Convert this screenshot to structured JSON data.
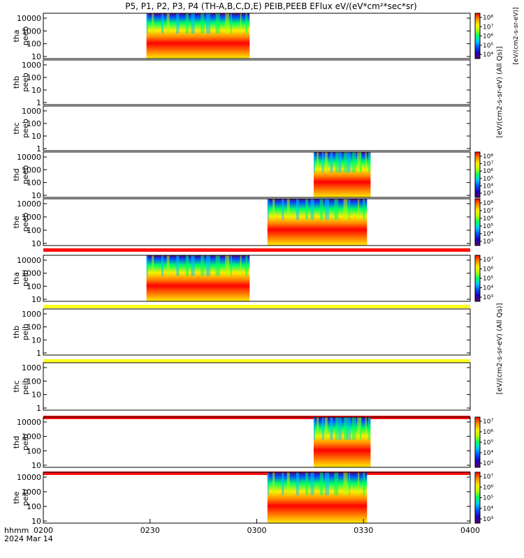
{
  "title": "P5, P1, P2, P3, P4 (TH-A,B,C,D,E) PEIB,PEEB EFlux eV/(eV*cm²*sec*sr)",
  "xaxis": {
    "label_line1": "hhmm",
    "label_line2": "2024 Mar 14",
    "ticks": [
      "0200",
      "0230",
      "0300",
      "0330",
      "0400"
    ]
  },
  "colorbar_units": {
    "peeb_side": "[eV/(cm2-s-sr-eV) (All Qs)]",
    "peib_side": "[eV/(cm2-s-sr-eV) (All Qs)]"
  },
  "colors": {
    "colormap": [
      "#5a0070",
      "#1e00b4",
      "#0050ff",
      "#00c8ff",
      "#00ff64",
      "#b4ff00",
      "#ffee00",
      "#ff8c00",
      "#ff0000"
    ],
    "red_strip": "#ff1010",
    "yellow_strip": "#ffff20"
  },
  "chart_data": [
    {
      "type": "heatmap",
      "panel": "tha_peeb",
      "label_line1": "tha",
      "label_line2": "peeb",
      "yscale": "log",
      "yticks": [
        "10",
        "100",
        "1000",
        "10000"
      ],
      "data_x_range": [
        "0229",
        "0258"
      ],
      "colorbar": true,
      "colorbar_ticks": [
        "10⁴",
        "10⁵",
        "10⁶",
        "10⁷",
        "10⁸"
      ],
      "colorbar_label": "[eV/(cm2-s-sr-eV)]"
    },
    {
      "type": "heatmap",
      "panel": "thb_peeb",
      "label_line1": "thb",
      "label_line2": "peeb",
      "yscale": "log",
      "yticks": [
        "1",
        "10",
        "100",
        "1000"
      ],
      "data_x_range": null,
      "colorbar": false
    },
    {
      "type": "heatmap",
      "panel": "thc_peeb",
      "label_line1": "thc",
      "label_line2": "peeb",
      "yscale": "log",
      "yticks": [
        "1",
        "10",
        "100",
        "1000"
      ],
      "data_x_range": null,
      "colorbar": false
    },
    {
      "type": "heatmap",
      "panel": "thd_peeb",
      "label_line1": "thd",
      "label_line2": "peeb",
      "yscale": "log",
      "yticks": [
        "10",
        "100",
        "1000",
        "10000"
      ],
      "data_x_range": [
        "0316",
        "0332"
      ],
      "colorbar": true,
      "colorbar_ticks": [
        "10³",
        "10⁴",
        "10⁵",
        "10⁶",
        "10⁷",
        "10⁸"
      ]
    },
    {
      "type": "heatmap",
      "panel": "the_peeb",
      "label_line1": "the",
      "label_line2": "peeb",
      "yscale": "log",
      "yticks": [
        "10",
        "100",
        "1000",
        "10000"
      ],
      "data_x_range": [
        "0303",
        "0331"
      ],
      "colorbar": true,
      "colorbar_ticks": [
        "10³",
        "10⁴",
        "10⁵",
        "10⁶",
        "10⁷",
        "10⁸"
      ]
    },
    {
      "type": "heatmap",
      "panel": "tha_peib",
      "label_line1": "tha",
      "label_line2": "peib",
      "yscale": "log",
      "yticks": [
        "10",
        "100",
        "1000",
        "10000"
      ],
      "data_x_range": [
        "0229",
        "0258"
      ],
      "colorbar": true,
      "colorbar_ticks": [
        "10³",
        "10⁴",
        "10⁵",
        "10⁶",
        "10⁷"
      ]
    },
    {
      "type": "heatmap",
      "panel": "thb_peib",
      "label_line1": "thb",
      "label_line2": "peib",
      "yscale": "log",
      "yticks": [
        "1",
        "10",
        "100",
        "1000"
      ],
      "data_x_range": null,
      "colorbar": false
    },
    {
      "type": "heatmap",
      "panel": "thc_peib",
      "label_line1": "thc",
      "label_line2": "peib",
      "yscale": "log",
      "yticks": [
        "1",
        "10",
        "100",
        "1000"
      ],
      "data_x_range": null,
      "colorbar": false
    },
    {
      "type": "heatmap",
      "panel": "thd_peib",
      "label_line1": "thd",
      "label_line2": "peib",
      "yscale": "log",
      "yticks": [
        "10",
        "100",
        "1000",
        "10000"
      ],
      "data_x_range": [
        "0316",
        "0332"
      ],
      "colorbar": true,
      "colorbar_ticks": [
        "10³",
        "10⁴",
        "10⁵",
        "10⁶",
        "10⁷"
      ]
    },
    {
      "type": "heatmap",
      "panel": "the_peib",
      "label_line1": "the",
      "label_line2": "peib",
      "yscale": "log",
      "yticks": [
        "10",
        "100",
        "1000",
        "10000"
      ],
      "data_x_range": [
        "0303",
        "0331"
      ],
      "colorbar": true,
      "colorbar_ticks": [
        "10³",
        "10⁴",
        "10⁵",
        "10⁶",
        "10⁷"
      ]
    }
  ]
}
